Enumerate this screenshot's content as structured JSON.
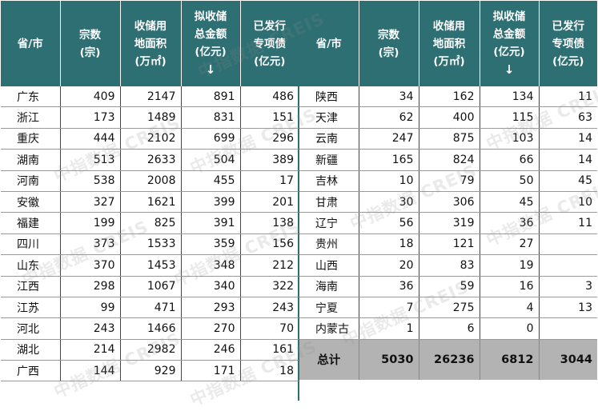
{
  "headers": {
    "province": "省/市",
    "count": [
      "宗数",
      "(宗)"
    ],
    "area": [
      "收储用",
      "地面积",
      "(万㎡)"
    ],
    "amount": [
      "拟收储",
      "总金额",
      "(亿元)",
      "↓"
    ],
    "bond": [
      "已发行",
      "专项债",
      "(亿元)"
    ]
  },
  "left_rows": [
    {
      "province": "广东",
      "count": "409",
      "area": "2147",
      "amount": "891",
      "bond": "486"
    },
    {
      "province": "浙江",
      "count": "173",
      "area": "1489",
      "amount": "831",
      "bond": "151"
    },
    {
      "province": "重庆",
      "count": "444",
      "area": "2102",
      "amount": "699",
      "bond": "296"
    },
    {
      "province": "湖南",
      "count": "513",
      "area": "2633",
      "amount": "504",
      "bond": "389"
    },
    {
      "province": "河南",
      "count": "538",
      "area": "2008",
      "amount": "455",
      "bond": "17"
    },
    {
      "province": "安徽",
      "count": "327",
      "area": "1621",
      "amount": "399",
      "bond": "201"
    },
    {
      "province": "福建",
      "count": "199",
      "area": "825",
      "amount": "391",
      "bond": "138"
    },
    {
      "province": "四川",
      "count": "373",
      "area": "1533",
      "amount": "359",
      "bond": "156"
    },
    {
      "province": "山东",
      "count": "370",
      "area": "1453",
      "amount": "348",
      "bond": "212"
    },
    {
      "province": "江西",
      "count": "298",
      "area": "1067",
      "amount": "340",
      "bond": "322"
    },
    {
      "province": "江苏",
      "count": "99",
      "area": "471",
      "amount": "293",
      "bond": "243"
    },
    {
      "province": "河北",
      "count": "243",
      "area": "1466",
      "amount": "270",
      "bond": "70"
    },
    {
      "province": "湖北",
      "count": "214",
      "area": "2982",
      "amount": "246",
      "bond": "161"
    },
    {
      "province": "广西",
      "count": "144",
      "area": "929",
      "amount": "171",
      "bond": "18"
    }
  ],
  "right_rows": [
    {
      "province": "陕西",
      "count": "34",
      "area": "162",
      "amount": "134",
      "bond": "11"
    },
    {
      "province": "天津",
      "count": "62",
      "area": "400",
      "amount": "115",
      "bond": "63"
    },
    {
      "province": "云南",
      "count": "247",
      "area": "875",
      "amount": "103",
      "bond": "14"
    },
    {
      "province": "新疆",
      "count": "165",
      "area": "824",
      "amount": "66",
      "bond": "14"
    },
    {
      "province": "吉林",
      "count": "10",
      "area": "79",
      "amount": "50",
      "bond": "45"
    },
    {
      "province": "甘肃",
      "count": "30",
      "area": "306",
      "amount": "45",
      "bond": "10"
    },
    {
      "province": "辽宁",
      "count": "56",
      "area": "319",
      "amount": "36",
      "bond": "11"
    },
    {
      "province": "贵州",
      "count": "18",
      "area": "121",
      "amount": "27",
      "bond": ""
    },
    {
      "province": "山西",
      "count": "20",
      "area": "83",
      "amount": "19",
      "bond": ""
    },
    {
      "province": "海南",
      "count": "36",
      "area": "59",
      "amount": "16",
      "bond": "3"
    },
    {
      "province": "宁夏",
      "count": "7",
      "area": "275",
      "amount": "4",
      "bond": "13"
    },
    {
      "province": "内蒙古",
      "count": "1",
      "area": "6",
      "amount": "0",
      "bond": ""
    }
  ],
  "total": {
    "label": "总计",
    "count": "5030",
    "area": "26236",
    "amount": "6812",
    "bond": "3044"
  },
  "watermark": "中指数据 CREIS",
  "colors": {
    "header_bg": "#2e6f73",
    "header_text": "#ffffff",
    "total_bg": "#b3b3b3"
  }
}
